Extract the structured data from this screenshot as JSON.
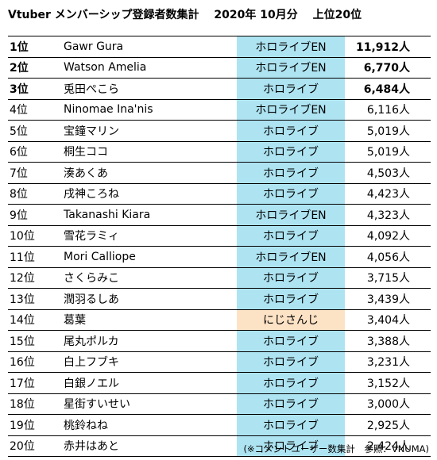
{
  "header": {
    "title": "Vtuber メンバーシップ登録者数集計",
    "period": "2020年 10月分",
    "subtitle": "上位20位"
  },
  "rows": [
    {
      "rank": "1位",
      "name": "Gawr Gura",
      "group": "ホロライブEN",
      "count": "11,912人"
    },
    {
      "rank": "2位",
      "name": "Watson Amelia",
      "group": "ホロライブEN",
      "count": "6,770人"
    },
    {
      "rank": "3位",
      "name": "兎田ぺこら",
      "group": "ホロライブ",
      "count": "6,484人"
    },
    {
      "rank": "4位",
      "name": "Ninomae Ina'nis",
      "group": "ホロライブEN",
      "count": "6,116人"
    },
    {
      "rank": "5位",
      "name": "宝鐘マリン",
      "group": "ホロライブ",
      "count": "5,019人"
    },
    {
      "rank": "6位",
      "name": "桐生ココ",
      "group": "ホロライブ",
      "count": "5,019人"
    },
    {
      "rank": "7位",
      "name": "湊あくあ",
      "group": "ホロライブ",
      "count": "4,503人"
    },
    {
      "rank": "8位",
      "name": "戌神ころね",
      "group": "ホロライブ",
      "count": "4,423人"
    },
    {
      "rank": "9位",
      "name": "Takanashi Kiara",
      "group": "ホロライブEN",
      "count": "4,323人"
    },
    {
      "rank": "10位",
      "name": "雪花ラミィ",
      "group": "ホロライブ",
      "count": "4,092人"
    },
    {
      "rank": "11位",
      "name": "Mori Calliope",
      "group": "ホロライブEN",
      "count": "4,056人"
    },
    {
      "rank": "12位",
      "name": "さくらみこ",
      "group": "ホロライブ",
      "count": "3,715人"
    },
    {
      "rank": "13位",
      "name": "潤羽るしあ",
      "group": "ホロライブ",
      "count": "3,439人"
    },
    {
      "rank": "14位",
      "name": "葛葉",
      "group": "にじさんじ",
      "count": "3,404人"
    },
    {
      "rank": "15位",
      "name": "尾丸ポルカ",
      "group": "ホロライブ",
      "count": "3,388人"
    },
    {
      "rank": "16位",
      "name": "白上フブキ",
      "group": "ホロライブ",
      "count": "3,231人"
    },
    {
      "rank": "17位",
      "name": "白銀ノエル",
      "group": "ホロライブ",
      "count": "3,152人"
    },
    {
      "rank": "18位",
      "name": "星街すいせい",
      "group": "ホロライブ",
      "count": "3,000人"
    },
    {
      "rank": "19位",
      "name": "桃鈴ねね",
      "group": "ホロライブ",
      "count": "2,925人"
    },
    {
      "rank": "20位",
      "name": "赤井はあと",
      "group": "ホロライブ",
      "count": "2,424人"
    }
  ],
  "footer": {
    "note": "(※コメントユーザー数集計　参照：VNUMA)"
  },
  "colors": {
    "hololive_bg": "#aee4f2",
    "nijisanji_bg": "#fde3c6"
  }
}
